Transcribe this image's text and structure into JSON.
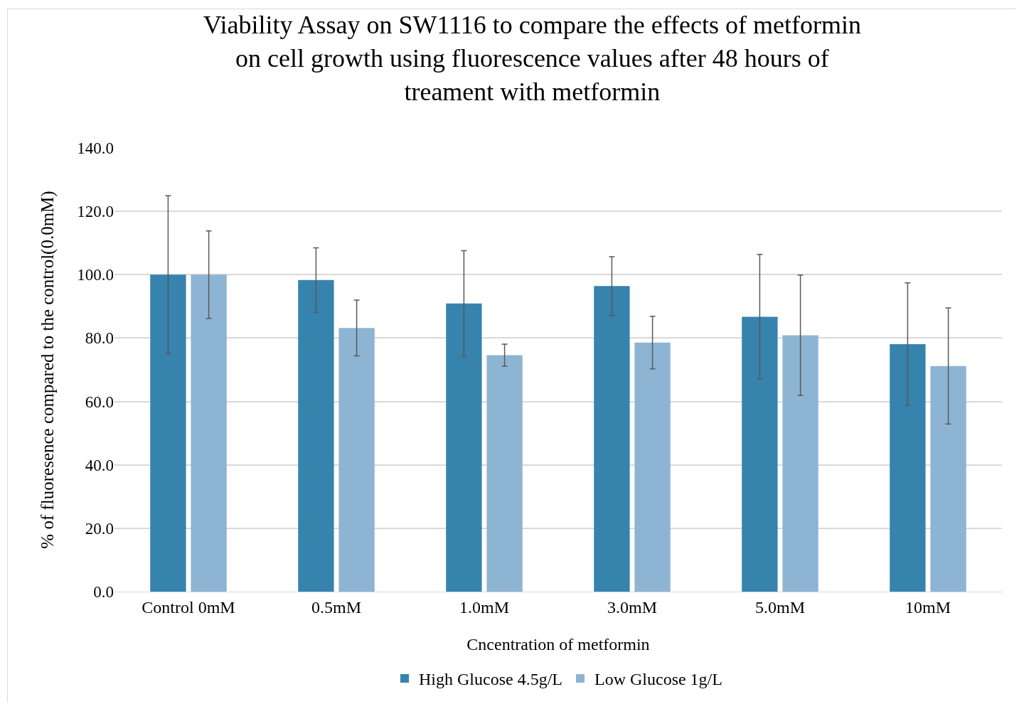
{
  "chart_data": {
    "type": "bar",
    "title": "Viability Assay on SW1116 to compare the effects of metformin on cell growth using fluorescence values after 48 hours of treament with metformin",
    "xlabel": "Cncentration of metformin",
    "ylabel": "% of fluoresence compared to the control(0.0mM)",
    "categories": [
      "Control 0mM",
      "0.5mM",
      "1.0mM",
      "3.0mM",
      "5.0mM",
      "10mM"
    ],
    "series": [
      {
        "name": "High Glucose 4.5g/L",
        "color": "#3683ae",
        "values": [
          100,
          98.3,
          90.9,
          96.4,
          86.7,
          78.1
        ],
        "errors": [
          24.9,
          10.2,
          16.7,
          9.3,
          19.7,
          19.3
        ]
      },
      {
        "name": "Low Glucose 1g/L",
        "color": "#8eb4d4",
        "values": [
          100,
          83.2,
          74.6,
          78.6,
          80.9,
          71.2
        ],
        "errors": [
          13.8,
          8.8,
          3.5,
          8.3,
          19.0,
          18.3
        ]
      }
    ],
    "ylim": [
      0,
      140
    ],
    "yticks": [
      {
        "value": 0,
        "label": "0.0"
      },
      {
        "value": 20,
        "label": "20.0"
      },
      {
        "value": 40,
        "label": "40.0"
      },
      {
        "value": 60,
        "label": "60.0"
      },
      {
        "value": 80,
        "label": "80.0"
      },
      {
        "value": 100,
        "label": "100.0"
      },
      {
        "value": 120,
        "label": "120.0"
      },
      {
        "value": 140,
        "label": "140.0"
      }
    ],
    "grid": "y",
    "legend": "bottom"
  }
}
